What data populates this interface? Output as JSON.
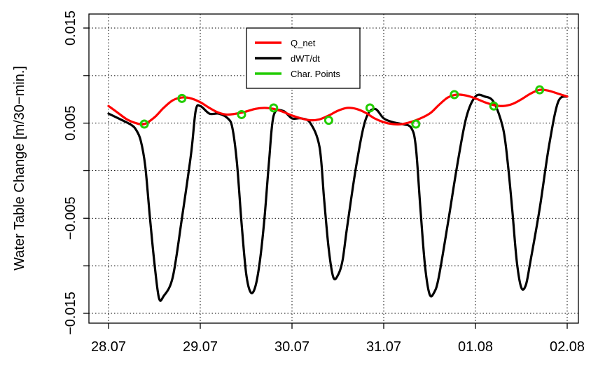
{
  "chart_data": {
    "type": "line",
    "title": "",
    "xlabel": "",
    "ylabel": "Water Table Change [m/30−min.]",
    "x_tick_labels": [
      "28.07",
      "29.07",
      "30.07",
      "31.07",
      "01.08",
      "02.08"
    ],
    "y_tick_labels": [
      "−0.015",
      "−0.005",
      "0.005",
      "0.015"
    ],
    "y_ticks": [
      -0.015,
      -0.01,
      -0.005,
      0,
      0.005,
      0.01,
      0.015
    ],
    "xlim": [
      0,
      5
    ],
    "ylim": [
      -0.016,
      0.016
    ],
    "grid": true,
    "legend_position": "top-center",
    "series": [
      {
        "name": "Q_net",
        "color": "#ff0000",
        "x": [
          0,
          0.1,
          0.2,
          0.3,
          0.39,
          0.5,
          0.6,
          0.7,
          0.8,
          0.9,
          1.0,
          1.1,
          1.2,
          1.3,
          1.45,
          1.6,
          1.7,
          1.8,
          1.9,
          2.0,
          2.1,
          2.2,
          2.3,
          2.4,
          2.5,
          2.6,
          2.7,
          2.8,
          2.9,
          3.0,
          3.1,
          3.2,
          3.35,
          3.5,
          3.6,
          3.7,
          3.8,
          3.9,
          4.0,
          4.1,
          4.2,
          4.3,
          4.4,
          4.5,
          4.6,
          4.7,
          4.8,
          4.9,
          5.0
        ],
        "values": [
          0.0068,
          0.0061,
          0.0054,
          0.005,
          0.0049,
          0.0056,
          0.0066,
          0.0074,
          0.0077,
          0.0076,
          0.0072,
          0.0066,
          0.0061,
          0.0059,
          0.0061,
          0.0065,
          0.0066,
          0.0065,
          0.0062,
          0.0058,
          0.0055,
          0.0053,
          0.0054,
          0.0058,
          0.0063,
          0.0066,
          0.0065,
          0.0061,
          0.0055,
          0.0051,
          0.0049,
          0.0049,
          0.0053,
          0.006,
          0.0069,
          0.0077,
          0.008,
          0.0079,
          0.0076,
          0.0072,
          0.0069,
          0.0068,
          0.007,
          0.0075,
          0.0081,
          0.0085,
          0.0084,
          0.0081,
          0.0078
        ]
      },
      {
        "name": "dWT/dt",
        "color": "#000000",
        "x": [
          0,
          0.15,
          0.25,
          0.3,
          0.35,
          0.4,
          0.45,
          0.5,
          0.55,
          0.6,
          0.7,
          0.8,
          0.9,
          0.95,
          1.0,
          1.1,
          1.2,
          1.3,
          1.35,
          1.4,
          1.45,
          1.5,
          1.55,
          1.6,
          1.65,
          1.7,
          1.75,
          1.8,
          1.9,
          2.0,
          2.1,
          2.2,
          2.3,
          2.35,
          2.4,
          2.45,
          2.5,
          2.55,
          2.6,
          2.7,
          2.8,
          2.9,
          3.0,
          3.1,
          3.2,
          3.3,
          3.35,
          3.4,
          3.45,
          3.5,
          3.55,
          3.6,
          3.7,
          3.8,
          3.9,
          4.0,
          4.1,
          4.2,
          4.3,
          4.35,
          4.4,
          4.45,
          4.5,
          4.55,
          4.6,
          4.7,
          4.8,
          4.9,
          5.0
        ],
        "values": [
          0.006,
          0.0053,
          0.0048,
          0.0043,
          0.0032,
          0.0005,
          -0.0048,
          -0.0097,
          -0.0134,
          -0.0132,
          -0.0112,
          -0.005,
          0.0018,
          0.0063,
          0.0068,
          0.006,
          0.006,
          0.0055,
          0.0045,
          0.0008,
          -0.0055,
          -0.0108,
          -0.0128,
          -0.0122,
          -0.0095,
          -0.005,
          0.001,
          0.0058,
          0.0063,
          0.0055,
          0.0055,
          0.005,
          0.0025,
          -0.003,
          -0.0082,
          -0.0112,
          -0.011,
          -0.0095,
          -0.006,
          0.0005,
          0.0053,
          0.0065,
          0.0055,
          0.0051,
          0.0049,
          0.0045,
          0.0025,
          -0.004,
          -0.01,
          -0.013,
          -0.0128,
          -0.0112,
          -0.0055,
          0.0005,
          0.0056,
          0.0078,
          0.0078,
          0.0072,
          0.0045,
          0.001,
          -0.004,
          -0.0095,
          -0.0123,
          -0.012,
          -0.0095,
          -0.004,
          0.0025,
          0.0072,
          0.0078
        ]
      },
      {
        "name": "Char. Points",
        "color": "#22cc00",
        "x": [
          0.39,
          0.8,
          1.45,
          1.8,
          2.4,
          2.85,
          3.35,
          3.77,
          4.2,
          4.7
        ],
        "values": [
          0.0049,
          0.0076,
          0.0059,
          0.0066,
          0.0053,
          0.0066,
          0.0049,
          0.008,
          0.0068,
          0.0085
        ]
      }
    ]
  }
}
